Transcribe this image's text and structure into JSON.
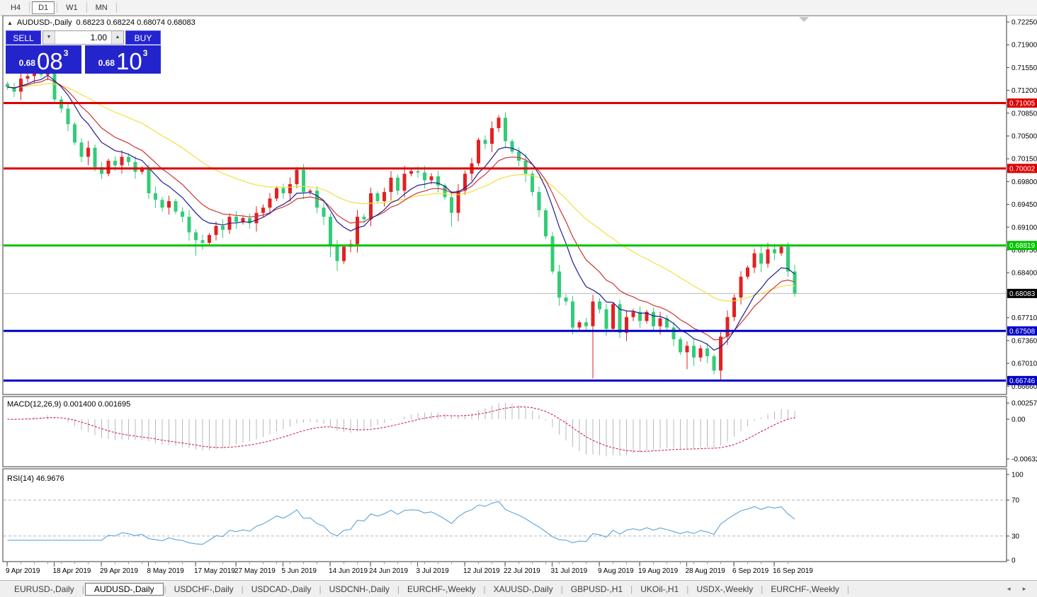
{
  "toolbar": {
    "timeframes": [
      {
        "label": "H4",
        "active": false
      },
      {
        "label": "D1",
        "active": true
      },
      {
        "label": "W1",
        "active": false
      },
      {
        "label": "MN",
        "active": false
      }
    ]
  },
  "chart_header": {
    "collapse_icon": "▲",
    "symbol": "AUDUSD-,Daily",
    "ohlc": "0.68223 0.68224 0.68074 0.68083"
  },
  "trade_panel": {
    "sell_label": "SELL",
    "buy_label": "BUY",
    "volume": "1.00",
    "bid": {
      "small": "0.68",
      "big": "08",
      "sup": "3"
    },
    "ask": {
      "small": "0.68",
      "big": "10",
      "sup": "3"
    }
  },
  "indicator_labels": {
    "macd": "MACD(12,26,9) 0.001400 0.001695",
    "rsi": "RSI(14) 46.9676"
  },
  "chart_data": {
    "type": "candlestick",
    "symbol": "AUDUSD-",
    "timeframe": "Daily",
    "up_color": "#e02222",
    "down_color": "#33cc77",
    "first_open": 0.713,
    "closes": [
      0.7125,
      0.7118,
      0.7138,
      0.7142,
      0.715,
      0.7144,
      0.7166,
      0.7106,
      0.7092,
      0.7068,
      0.704,
      0.7018,
      0.7032,
      0.7002,
      0.6992,
      0.7012,
      0.7005,
      0.7018,
      0.701,
      0.6995,
      0.7,
      0.6962,
      0.6952,
      0.694,
      0.695,
      0.6934,
      0.6926,
      0.6902,
      0.689,
      0.6886,
      0.6898,
      0.6912,
      0.6906,
      0.6926,
      0.6918,
      0.6924,
      0.6916,
      0.6932,
      0.694,
      0.6954,
      0.697,
      0.6962,
      0.6976,
      0.6998,
      0.6964,
      0.6966,
      0.694,
      0.6926,
      0.6882,
      0.6858,
      0.688,
      0.6884,
      0.6926,
      0.6922,
      0.6962,
      0.695,
      0.6964,
      0.6986,
      0.6966,
      0.6992,
      0.6996,
      0.6994,
      0.6982,
      0.6988,
      0.6974,
      0.6956,
      0.6932,
      0.6966,
      0.6992,
      0.7008,
      0.7044,
      0.7038,
      0.7062,
      0.7078,
      0.7042,
      0.7026,
      0.7012,
      0.6992,
      0.6964,
      0.6936,
      0.6896,
      0.6842,
      0.6802,
      0.6796,
      0.6756,
      0.6764,
      0.6758,
      0.6796,
      0.6784,
      0.6754,
      0.6792,
      0.6748,
      0.6772,
      0.678,
      0.6766,
      0.678,
      0.6758,
      0.677,
      0.6756,
      0.6738,
      0.6718,
      0.6728,
      0.671,
      0.6724,
      0.6712,
      0.669,
      0.6742,
      0.6772,
      0.6802,
      0.6834,
      0.6848,
      0.687,
      0.6854,
      0.6876,
      0.687,
      0.688,
      0.6842,
      0.6808
    ],
    "overrides": {
      "6": {
        "h": 0.7175
      },
      "7": {
        "l": 0.71
      },
      "14": {
        "l": 0.6984
      },
      "28": {
        "l": 0.6866
      },
      "43": {
        "h": 0.7002
      },
      "48": {
        "l": 0.6864
      },
      "49": {
        "l": 0.6843
      },
      "59": {
        "h": 0.7004
      },
      "66": {
        "l": 0.6911
      },
      "73": {
        "h": 0.7082
      },
      "81": {
        "l": 0.6838
      },
      "87": {
        "l": 0.6678
      },
      "101": {
        "l": 0.6692
      },
      "105": {
        "l": 0.6684
      },
      "106": {
        "o": 0.669,
        "l": 0.6676
      },
      "113": {
        "h": 0.6886
      },
      "115": {
        "h": 0.6884
      },
      "117": {
        "l": 0.6803
      }
    },
    "moving_averages": [
      {
        "name": "ma-slow",
        "period": 34,
        "color": "#f0e040"
      },
      {
        "name": "ma-medium",
        "period": 13,
        "color": "#cc3333"
      },
      {
        "name": "ma-fast",
        "period": 8,
        "color": "#1c1c92"
      }
    ],
    "hlines": [
      {
        "price": 0.71005,
        "label": "0.71005",
        "color": "#dd0000"
      },
      {
        "price": 0.70002,
        "label": "0.70002",
        "color": "#dd0000"
      },
      {
        "price": 0.68819,
        "label": "0.68819",
        "color": "#00c400"
      },
      {
        "price": 0.67508,
        "label": "0.67508",
        "color": "#0000c8"
      },
      {
        "price": 0.66746,
        "label": "0.66746",
        "color": "#0000c8"
      }
    ],
    "current_price": {
      "value": 0.68083,
      "label": "0.68083"
    },
    "y_ticks": [
      "0.72250",
      "0.71900",
      "0.71550",
      "0.71200",
      "0.70850",
      "0.70500",
      "0.70150",
      "0.69800",
      "0.69450",
      "0.69100",
      "0.68750",
      "0.68400",
      "0.67710",
      "0.67360",
      "0.67010",
      "0.66660"
    ],
    "date_labels": [
      {
        "i": 0,
        "label": "9 Apr 2019"
      },
      {
        "i": 7,
        "label": "18 Apr 2019"
      },
      {
        "i": 14,
        "label": "29 Apr 2019"
      },
      {
        "i": 21,
        "label": "8 May 2019"
      },
      {
        "i": 28,
        "label": "17 May 2019"
      },
      {
        "i": 34,
        "label": "27 May 2019"
      },
      {
        "i": 41,
        "label": "5 Jun 2019"
      },
      {
        "i": 48,
        "label": "14 Jun 2019"
      },
      {
        "i": 54,
        "label": "24 Jun 2019"
      },
      {
        "i": 61,
        "label": "3 Jul 2019"
      },
      {
        "i": 68,
        "label": "12 Jul 2019"
      },
      {
        "i": 74,
        "label": "22 Jul 2019"
      },
      {
        "i": 81,
        "label": "31 Jul 2019"
      },
      {
        "i": 88,
        "label": "9 Aug 2019"
      },
      {
        "i": 94,
        "label": "19 Aug 2019"
      },
      {
        "i": 101,
        "label": "28 Aug 2019"
      },
      {
        "i": 108,
        "label": "6 Sep 2019"
      },
      {
        "i": 114,
        "label": "16 Sep 2019"
      }
    ],
    "macd": {
      "fast": 12,
      "slow": 26,
      "signal": 9,
      "current": "0.001400",
      "current_signal": "0.001695",
      "hist_color": "#b8b8b8",
      "signal_color": "#cc1133",
      "axis": [
        {
          "v": 0.002574,
          "t": "0.002574"
        },
        {
          "v": 0.0,
          "t": "0.00"
        },
        {
          "v": -0.006326,
          "t": "-0.006326"
        }
      ]
    },
    "rsi": {
      "period": 14,
      "current": "46.9676",
      "color": "#4f9bd5",
      "levels": [
        70,
        30
      ],
      "axis": [
        {
          "v": 100,
          "t": "100"
        },
        {
          "v": 70,
          "t": "70"
        },
        {
          "v": 30,
          "t": "30"
        },
        {
          "v": 0,
          "t": "0"
        }
      ]
    }
  },
  "tab_bar": {
    "tabs": [
      {
        "label": "EURUSD-,Daily",
        "active": false
      },
      {
        "label": "AUDUSD-,Daily",
        "active": true
      },
      {
        "label": "USDCHF-,Daily",
        "active": false
      },
      {
        "label": "USDCAD-,Daily",
        "active": false
      },
      {
        "label": "USDCNH-,Daily",
        "active": false
      },
      {
        "label": "EURCHF-,Weekly",
        "active": false
      },
      {
        "label": "XAUUSD-,Daily",
        "active": false
      },
      {
        "label": "GBPUSD-,H1",
        "active": false
      },
      {
        "label": "UKOil-,H1",
        "active": false
      },
      {
        "label": "USDX-,Weekly",
        "active": false
      },
      {
        "label": "EURCHF-,Weekly",
        "active": false
      }
    ],
    "scroll_left": "◄",
    "scroll_right": "►"
  }
}
